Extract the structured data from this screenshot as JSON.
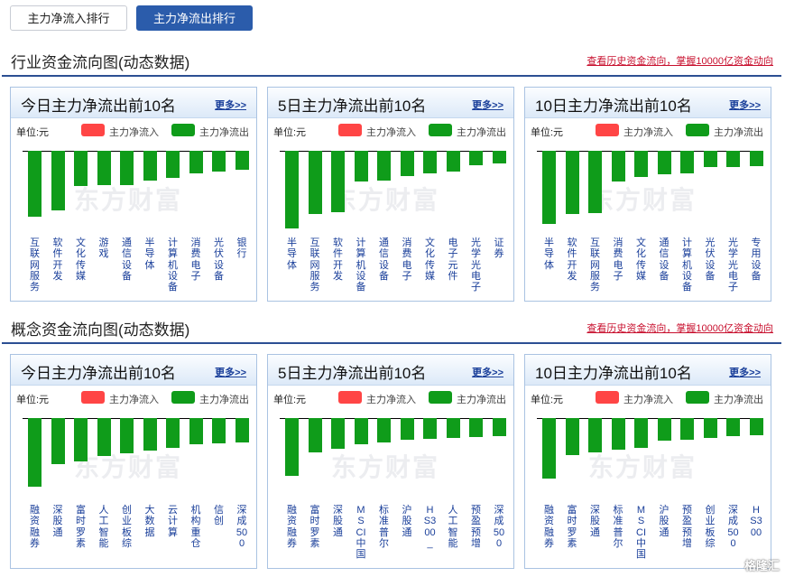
{
  "tabs": [
    {
      "label": "主力净流入排行",
      "active": false
    },
    {
      "label": "主力净流出排行",
      "active": true
    }
  ],
  "sections": [
    {
      "title": "行业资金流向图(动态数据)",
      "link": "查看历史资金流向，掌握10000亿资金动向",
      "panels": [
        {
          "title": "今日主力净流出前10名",
          "more": "更多>>",
          "chart_data": {
            "type": "bar",
            "unit": "单位:元",
            "legend": [
              "主力净流入",
              "主力净流出"
            ],
            "categories": [
              "互联网服务",
              "软件开发",
              "文化传媒",
              "游戏",
              "通信设备",
              "半导体",
              "计算机设备",
              "消费电子",
              "光伏设备",
              "银行"
            ],
            "values": [
              -73,
              -66,
              -39,
              -38,
              -38,
              -33,
              -30,
              -25,
              -23,
              -21
            ]
          }
        },
        {
          "title": "5日主力净流出前10名",
          "more": "更多>>",
          "chart_data": {
            "type": "bar",
            "unit": "单位:元",
            "legend": [
              "主力净流入",
              "主力净流出"
            ],
            "categories": [
              "半导体",
              "互联网服务",
              "软件开发",
              "计算机设备",
              "通信设备",
              "消费电子",
              "文化传媒",
              "电子元件",
              "光学光电子",
              "证券"
            ],
            "values": [
              -86,
              -70,
              -68,
              -34,
              -33,
              -28,
              -25,
              -23,
              -16,
              -14
            ]
          }
        },
        {
          "title": "10日主力净流出前10名",
          "more": "更多>>",
          "chart_data": {
            "type": "bar",
            "unit": "单位:元",
            "legend": [
              "主力净流入",
              "主力净流出"
            ],
            "categories": [
              "半导体",
              "软件开发",
              "互联网服务",
              "消费电子",
              "文化传媒",
              "通信设备",
              "计算机设备",
              "光伏设备",
              "光学光电子",
              "专用设备"
            ],
            "values": [
              -81,
              -70,
              -69,
              -34,
              -29,
              -26,
              -25,
              -18,
              -18,
              -17
            ]
          }
        }
      ]
    },
    {
      "title": "概念资金流向图(动态数据)",
      "link": "查看历史资金流向，掌握10000亿资金动向",
      "panels": [
        {
          "title": "今日主力净流出前10名",
          "more": "更多>>",
          "chart_data": {
            "type": "bar",
            "unit": "单位:元",
            "legend": [
              "主力净流入",
              "主力净流出"
            ],
            "categories": [
              "融资融券",
              "深股通",
              "富时罗素",
              "人工智能",
              "创业板综",
              "大数据",
              "云计算",
              "机构重仓",
              "信创",
              "深成500"
            ],
            "values": [
              -76,
              -51,
              -48,
              -42,
              -39,
              -36,
              -33,
              -29,
              -28,
              -27
            ]
          }
        },
        {
          "title": "5日主力净流出前10名",
          "more": "更多>>",
          "chart_data": {
            "type": "bar",
            "unit": "单位:元",
            "legend": [
              "主力净流入",
              "主力净流出"
            ],
            "categories": [
              "融资融券",
              "富时罗素",
              "深股通",
              "MSCI中国",
              "标准普尔",
              "沪股通",
              "HS300_",
              "人工智能",
              "预盈预增",
              "深成500"
            ],
            "values": [
              -64,
              -38,
              -34,
              -29,
              -27,
              -24,
              -23,
              -22,
              -21,
              -20
            ]
          }
        },
        {
          "title": "10日主力净流出前10名",
          "more": "更多>>",
          "chart_data": {
            "type": "bar",
            "unit": "单位:元",
            "legend": [
              "主力净流入",
              "主力净流出"
            ],
            "categories": [
              "融资融券",
              "富时罗素",
              "深股通",
              "标准普尔",
              "MSCI中国",
              "沪股通",
              "预盈预增",
              "创业板综",
              "深成500",
              "HS300"
            ],
            "values": [
              -67,
              -41,
              -38,
              -35,
              -33,
              -25,
              -24,
              -22,
              -20,
              -19
            ]
          }
        }
      ]
    }
  ],
  "watermark": "东方财富",
  "corner_watermark": "格隆汇",
  "colors": {
    "inflow": "#ff4545",
    "outflow": "#0f9c1a",
    "accent": "#2b5cab",
    "link": "#c8102e"
  }
}
